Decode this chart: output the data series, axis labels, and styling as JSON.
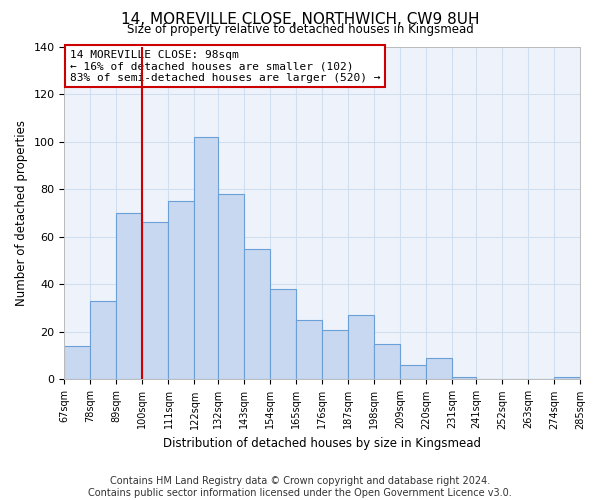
{
  "title": "14, MOREVILLE CLOSE, NORTHWICH, CW9 8UH",
  "subtitle": "Size of property relative to detached houses in Kingsmead",
  "xlabel": "Distribution of detached houses by size in Kingsmead",
  "ylabel": "Number of detached properties",
  "bar_color": "#c8d8f0",
  "bar_edge_color": "#6a9fd8",
  "vline_x": 100,
  "vline_color": "#cc0000",
  "annotation_lines": [
    "14 MOREVILLE CLOSE: 98sqm",
    "← 16% of detached houses are smaller (102)",
    "83% of semi-detached houses are larger (520) →"
  ],
  "annotation_box_edge": "#cc0000",
  "bin_edges": [
    67,
    78,
    89,
    100,
    111,
    122,
    132,
    143,
    154,
    165,
    176,
    187,
    198,
    209,
    220,
    231,
    241,
    252,
    263,
    274,
    285
  ],
  "bin_heights": [
    14,
    33,
    70,
    66,
    75,
    102,
    78,
    55,
    38,
    25,
    21,
    27,
    15,
    6,
    9,
    1,
    0,
    0,
    0,
    1
  ],
  "ylim": [
    0,
    140
  ],
  "yticks": [
    0,
    20,
    40,
    60,
    80,
    100,
    120,
    140
  ],
  "footer": "Contains HM Land Registry data © Crown copyright and database right 2024.\nContains public sector information licensed under the Open Government Licence v3.0.",
  "footer_fontsize": 7.0,
  "grid_color": "#d0dff0",
  "bg_color": "#eef3fb"
}
